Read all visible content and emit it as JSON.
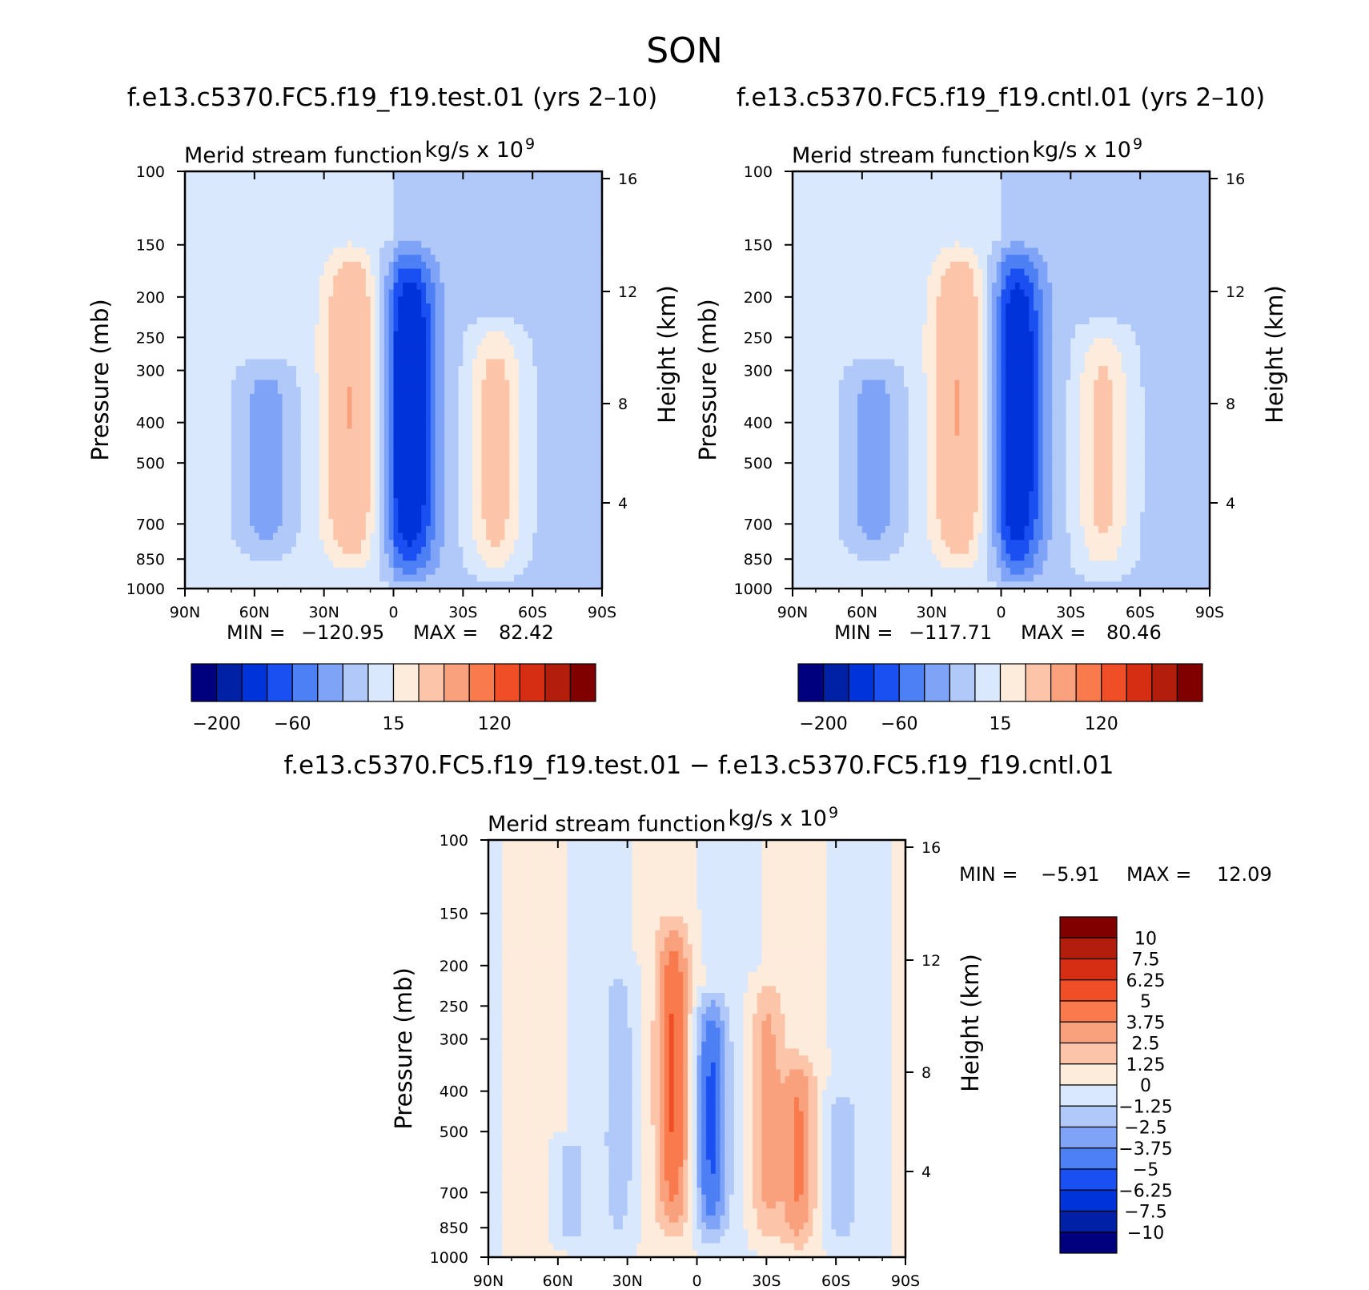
{
  "season": "SON",
  "chart_data": [
    {
      "type": "heatmap",
      "id": "test",
      "title": "f.e13.c5370.FC5.f19_f19.test.01 (yrs 2–10)",
      "variable": "Merid stream function",
      "units": "kg/s x 10",
      "units_exp": "9",
      "xlabel": "",
      "ylabel": "Pressure (mb)",
      "ylabel_right": "Height (km)",
      "x_ticks": [
        "90N",
        "60N",
        "30N",
        "0",
        "30S",
        "60S",
        "90S"
      ],
      "y_ticks": [
        100,
        150,
        200,
        250,
        300,
        400,
        500,
        700,
        850,
        1000
      ],
      "y_right_ticks": [
        16,
        12,
        8,
        4
      ],
      "ylim": [
        1000,
        100
      ],
      "xlim": [
        90,
        -90
      ],
      "min_label": "MIN =",
      "min": "−120.95",
      "max_label": "MAX =",
      "max": "82.42",
      "colorbar_labels": [
        "−200",
        "−60",
        "15",
        "120"
      ],
      "features": [
        {
          "lat": 55,
          "p_top": 280,
          "p_bot": 850,
          "value": -40
        },
        {
          "lat": 18,
          "p_top": 150,
          "p_bot": 900,
          "value": 55
        },
        {
          "lat": -7,
          "p_top": 150,
          "p_bot": 960,
          "value": -110
        },
        {
          "lat": -44,
          "p_top": 230,
          "p_bot": 940,
          "value": 45
        }
      ]
    },
    {
      "type": "heatmap",
      "id": "cntl",
      "title": "f.e13.c5370.FC5.f19_f19.cntl.01 (yrs 2–10)",
      "variable": "Merid stream function",
      "units": "kg/s x 10",
      "units_exp": "9",
      "xlabel": "",
      "ylabel": "Pressure (mb)",
      "ylabel_right": "Height (km)",
      "x_ticks": [
        "90N",
        "60N",
        "30N",
        "0",
        "30S",
        "60S",
        "90S"
      ],
      "y_ticks": [
        100,
        150,
        200,
        250,
        300,
        400,
        500,
        700,
        850,
        1000
      ],
      "y_right_ticks": [
        16,
        12,
        8,
        4
      ],
      "ylim": [
        1000,
        100
      ],
      "xlim": [
        90,
        -90
      ],
      "min_label": "MIN =",
      "min": "−117.71",
      "max_label": "MAX =",
      "max": "80.46",
      "colorbar_labels": [
        "−200",
        "−60",
        "15",
        "120"
      ],
      "features": [
        {
          "lat": 55,
          "p_top": 280,
          "p_bot": 850,
          "value": -40
        },
        {
          "lat": 18,
          "p_top": 150,
          "p_bot": 900,
          "value": 55
        },
        {
          "lat": -7,
          "p_top": 150,
          "p_bot": 960,
          "value": -105
        },
        {
          "lat": -44,
          "p_top": 230,
          "p_bot": 940,
          "value": 40
        }
      ]
    },
    {
      "type": "heatmap",
      "id": "diff",
      "title": "f.e13.c5370.FC5.f19_f19.test.01 − f.e13.c5370.FC5.f19_f19.cntl.01",
      "variable": "Merid stream function",
      "units": "kg/s x 10",
      "units_exp": "9",
      "xlabel": "",
      "ylabel": "Pressure (mb)",
      "ylabel_right": "Height (km)",
      "x_ticks": [
        "90N",
        "60N",
        "30N",
        "0",
        "30S",
        "60S",
        "90S"
      ],
      "y_ticks": [
        100,
        150,
        200,
        250,
        300,
        400,
        500,
        700,
        850,
        1000
      ],
      "y_right_ticks": [
        16,
        12,
        8,
        4
      ],
      "ylim": [
        1000,
        100
      ],
      "xlim": [
        90,
        -90
      ],
      "min_label": "MIN =",
      "min": "−5.91",
      "max_label": "MAX =",
      "max": "12.09",
      "colorbar_labels": [
        "10",
        "7.5",
        "6.25",
        "5",
        "3.75",
        "2.5",
        "1.25",
        "0",
        "−1.25",
        "−2.5",
        "−3.75",
        "−5",
        "−6.25",
        "−7.5",
        "−10"
      ],
      "features": [
        {
          "lat": 55,
          "p_top": 500,
          "p_bot": 960,
          "value": -1.8
        },
        {
          "lat": 33,
          "p_top": 190,
          "p_bot": 960,
          "value": -1.8
        },
        {
          "lat": 10,
          "p_top": 150,
          "p_bot": 900,
          "value": 4.8
        },
        {
          "lat": -6,
          "p_top": 230,
          "p_bot": 930,
          "value": -5
        },
        {
          "lat": -30,
          "p_top": 210,
          "p_bot": 950,
          "value": 3
        },
        {
          "lat": -44,
          "p_top": 320,
          "p_bot": 960,
          "value": 3.5
        },
        {
          "lat": -62,
          "p_top": 380,
          "p_bot": 960,
          "value": -1.8
        }
      ]
    }
  ],
  "colormap": [
    "#00007f",
    "#0021a6",
    "#0033d9",
    "#1a4ff2",
    "#4d7ff5",
    "#7fa4f7",
    "#b0c9f9",
    "#d9e8fc",
    "#fdebdc",
    "#fcc4a8",
    "#f9a07c",
    "#f97a4d",
    "#f04e26",
    "#d62e13",
    "#b31d0c",
    "#800000"
  ]
}
